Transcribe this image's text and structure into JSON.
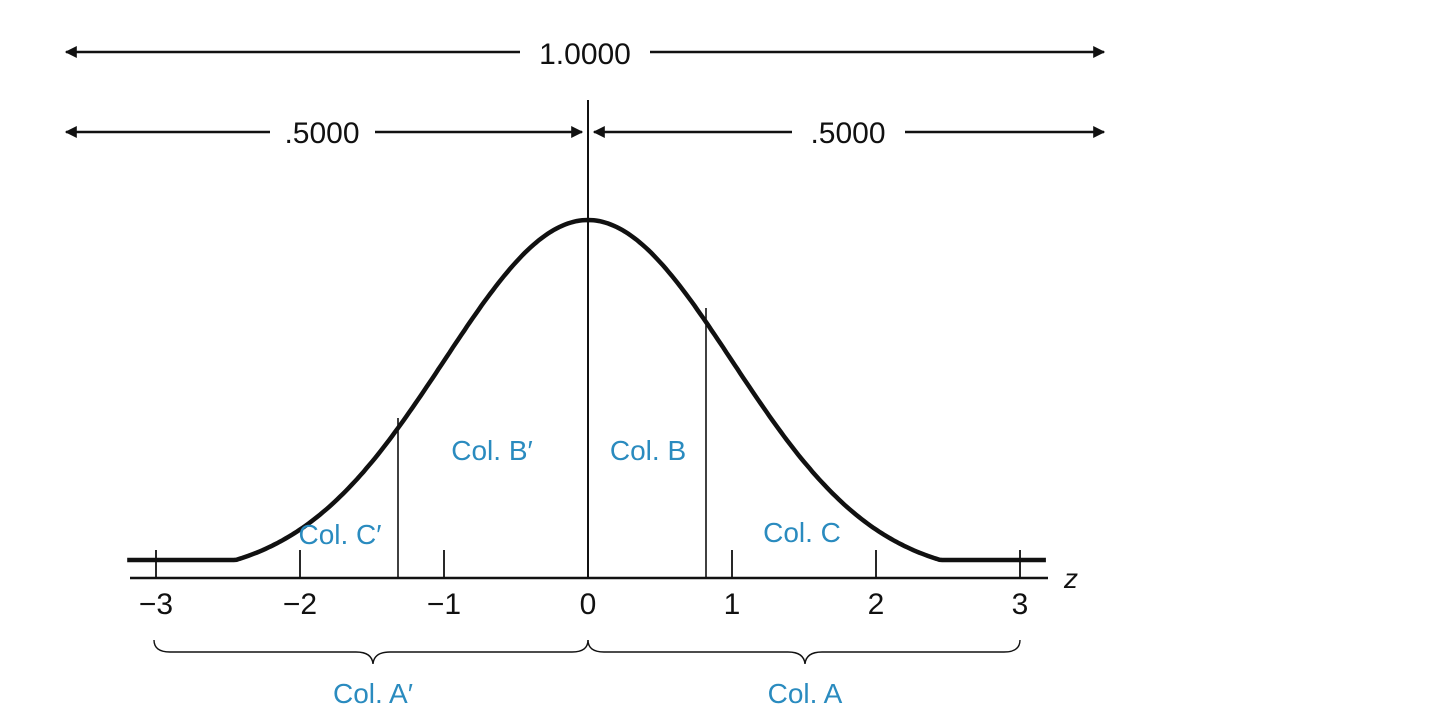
{
  "top_arrows": {
    "total_label": "1.0000",
    "left_half_label": ".5000",
    "right_half_label": ".5000"
  },
  "axis": {
    "label": "z",
    "ticks": [
      "−3",
      "−2",
      "−1",
      "0",
      "1",
      "2",
      "3"
    ]
  },
  "regions": {
    "col_b_prime": "Col. B′",
    "col_b": "Col. B",
    "col_c_prime": "Col. C′",
    "col_c": "Col. C",
    "col_a_prime": "Col. A′",
    "col_a": "Col. A"
  },
  "colors": {
    "label_blue": "#2a8bbf",
    "ink": "#111111"
  }
}
